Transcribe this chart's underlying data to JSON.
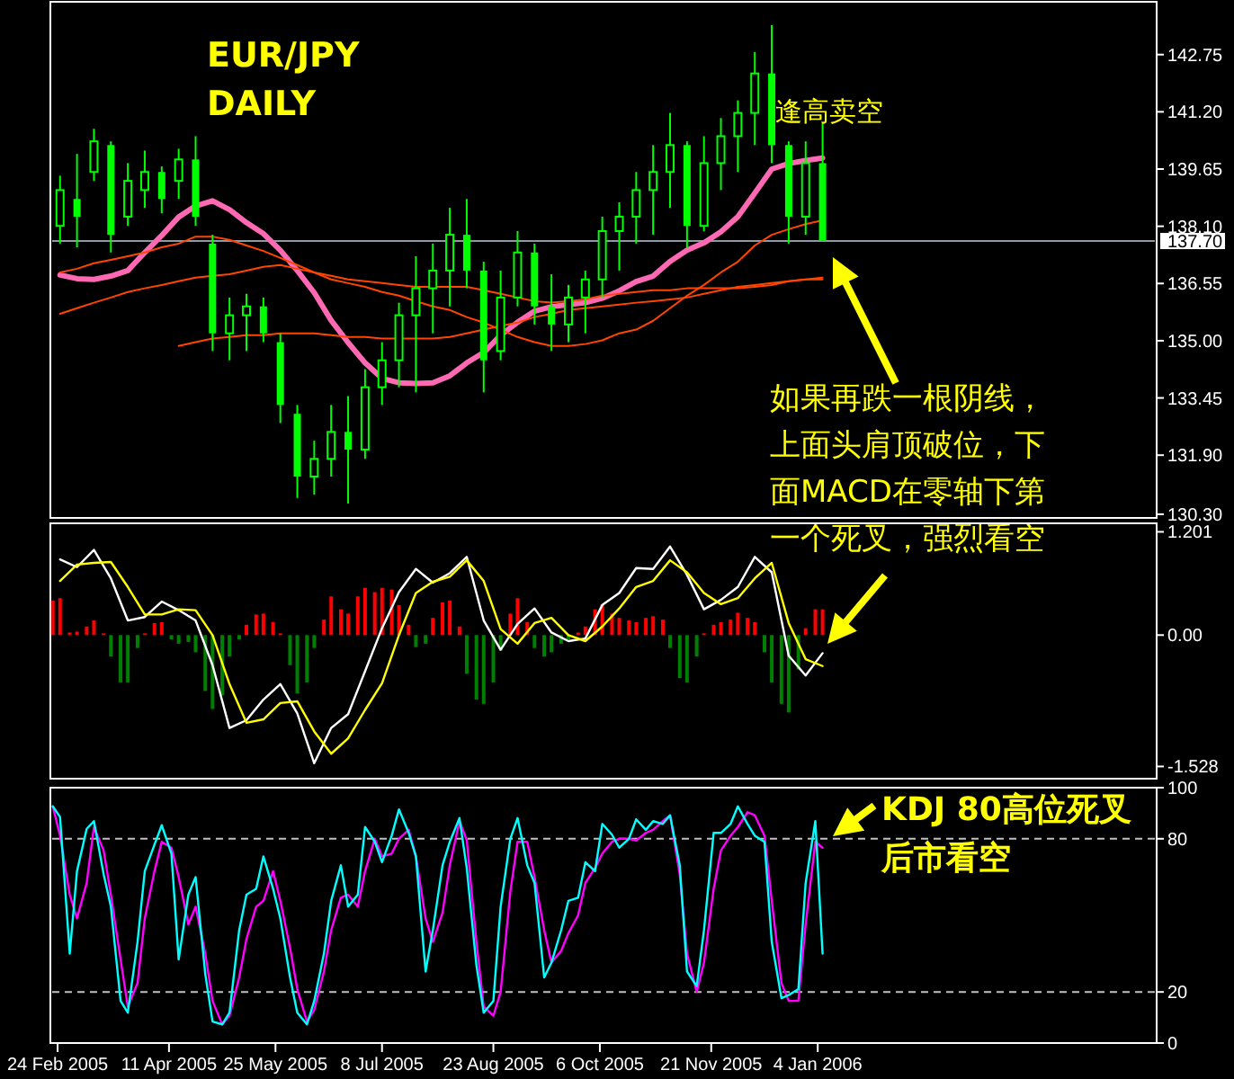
{
  "chart_data": [
    {
      "type": "candlestick",
      "title": "EUR/JPY",
      "subtitle": "DAILY",
      "color": "#00ff00",
      "x": [
        "2005-02-25",
        "2005-03-04",
        "2005-03-11",
        "2005-03-18",
        "2005-03-25",
        "2005-04-01",
        "2005-04-08",
        "2005-04-15",
        "2005-04-22",
        "2005-04-29",
        "2005-05-06",
        "2005-05-13",
        "2005-05-20",
        "2005-05-27",
        "2005-06-03",
        "2005-06-10",
        "2005-06-17",
        "2005-06-24",
        "2005-07-01",
        "2005-07-08",
        "2005-07-15",
        "2005-07-22",
        "2005-07-29",
        "2005-08-05",
        "2005-08-12",
        "2005-08-19",
        "2005-08-26",
        "2005-09-02",
        "2005-09-09",
        "2005-09-16",
        "2005-09-23",
        "2005-09-30",
        "2005-10-07",
        "2005-10-14",
        "2005-10-21",
        "2005-10-28",
        "2005-11-04",
        "2005-11-11",
        "2005-11-18",
        "2005-11-25",
        "2005-12-02",
        "2005-12-09",
        "2005-12-16",
        "2005-12-23",
        "2005-12-30",
        "2006-01-06"
      ],
      "ohlc": [
        [
          138.11,
          139.47,
          137.63,
          139.08
        ],
        [
          138.84,
          140.06,
          137.53,
          138.36
        ],
        [
          139.57,
          140.74,
          139.33,
          140.4
        ],
        [
          140.3,
          140.4,
          137.39,
          137.87
        ],
        [
          138.36,
          139.81,
          138.11,
          139.33
        ],
        [
          139.08,
          140.15,
          138.6,
          139.57
        ],
        [
          139.57,
          139.72,
          138.45,
          138.84
        ],
        [
          139.33,
          140.2,
          138.84,
          139.91
        ],
        [
          139.91,
          140.54,
          138.11,
          138.36
        ],
        [
          137.63,
          137.87,
          134.72,
          135.2
        ],
        [
          135.2,
          136.17,
          134.47,
          135.69
        ],
        [
          135.69,
          136.27,
          134.72,
          135.93
        ],
        [
          135.93,
          136.17,
          134.96,
          135.2
        ],
        [
          134.96,
          135.2,
          132.77,
          133.26
        ],
        [
          133.02,
          133.26,
          130.74,
          131.32
        ],
        [
          131.32,
          132.29,
          130.83,
          131.8
        ],
        [
          131.8,
          133.26,
          131.32,
          132.53
        ],
        [
          132.53,
          133.5,
          130.59,
          132.05
        ],
        [
          132.05,
          134.23,
          131.8,
          133.74
        ],
        [
          133.74,
          134.96,
          133.26,
          134.47
        ],
        [
          134.47,
          136.03,
          133.74,
          135.69
        ],
        [
          135.69,
          137.29,
          133.6,
          136.42
        ],
        [
          136.42,
          137.63,
          135.2,
          136.9
        ],
        [
          136.9,
          138.6,
          135.93,
          137.87
        ],
        [
          137.87,
          138.84,
          136.42,
          136.9
        ],
        [
          136.9,
          137.14,
          133.6,
          134.47
        ],
        [
          134.72,
          136.9,
          134.47,
          136.17
        ],
        [
          136.17,
          137.97,
          135.93,
          137.39
        ],
        [
          137.39,
          137.63,
          135.44,
          135.93
        ],
        [
          135.93,
          136.8,
          134.72,
          135.44
        ],
        [
          135.44,
          136.51,
          134.96,
          136.17
        ],
        [
          136.17,
          136.9,
          135.2,
          136.66
        ],
        [
          136.66,
          138.36,
          136.17,
          137.97
        ],
        [
          137.97,
          138.75,
          136.9,
          138.36
        ],
        [
          138.36,
          139.57,
          137.63,
          139.08
        ],
        [
          139.08,
          140.3,
          137.87,
          139.57
        ],
        [
          139.57,
          141.17,
          138.6,
          140.3
        ],
        [
          140.3,
          140.4,
          137.53,
          138.11
        ],
        [
          138.11,
          140.54,
          137.97,
          139.81
        ],
        [
          139.81,
          141.03,
          139.08,
          140.54
        ],
        [
          140.54,
          141.51,
          139.57,
          141.17
        ],
        [
          141.17,
          142.82,
          140.3,
          142.24
        ],
        [
          142.24,
          143.55,
          139.81,
          140.3
        ],
        [
          140.3,
          140.4,
          137.63,
          138.36
        ],
        [
          138.36,
          140.4,
          137.87,
          139.81
        ],
        [
          139.81,
          140.88,
          137.7,
          137.7
        ]
      ],
      "series": [
        {
          "type": "line",
          "color": "#ff69b4",
          "values": [
            136.78,
            136.68,
            136.66,
            136.75,
            136.9,
            137.39,
            137.85,
            138.35,
            138.65,
            138.79,
            138.55,
            138.2,
            137.9,
            137.45,
            136.9,
            136.3,
            135.55,
            134.95,
            134.4,
            133.98,
            133.86,
            133.84,
            133.86,
            134.05,
            134.4,
            134.68,
            135.15,
            135.5,
            135.8,
            135.92,
            135.98,
            136.03,
            136.15,
            136.35,
            136.6,
            136.75,
            137.15,
            137.45,
            137.65,
            137.95,
            138.36,
            139.0,
            139.65,
            139.8,
            139.88,
            139.95
          ]
        },
        {
          "type": "line",
          "color": "#ff4500",
          "values": [
            136.85,
            136.95,
            137.1,
            137.19,
            137.29,
            137.39,
            137.53,
            137.63,
            137.82,
            137.82,
            137.73,
            137.58,
            137.43,
            137.24,
            137.05,
            136.85,
            136.66,
            136.56,
            136.46,
            136.32,
            136.22,
            136.07,
            135.93,
            135.83,
            135.64,
            135.49,
            135.3,
            135.1,
            134.96,
            134.86,
            134.86,
            134.91,
            135.01,
            135.2,
            135.3,
            135.54,
            135.88,
            136.22,
            136.51,
            136.85,
            137.14,
            137.58,
            137.87,
            138.02,
            138.16,
            138.26
          ]
        },
        {
          "type": "line",
          "color": "#ff4500",
          "values": [
            135.73,
            135.88,
            136.03,
            136.17,
            136.32,
            136.42,
            136.51,
            136.61,
            136.71,
            136.76,
            136.8,
            136.9,
            137.0,
            137.05,
            136.95,
            136.85,
            136.76,
            136.66,
            136.61,
            136.56,
            136.51,
            136.46,
            136.46,
            136.46,
            136.46,
            136.37,
            136.27,
            136.17,
            136.07,
            136.03,
            136.07,
            136.12,
            136.22,
            136.27,
            136.32,
            136.37,
            136.37,
            136.42,
            136.42,
            136.42,
            136.42,
            136.46,
            136.51,
            136.61,
            136.66,
            136.71
          ]
        },
        {
          "type": "line",
          "color": "#ff4500",
          "values": [
            null,
            null,
            null,
            null,
            null,
            null,
            null,
            134.86,
            134.96,
            135.06,
            135.1,
            135.15,
            135.15,
            135.2,
            135.2,
            135.2,
            135.15,
            135.1,
            135.1,
            135.06,
            135.06,
            135.06,
            135.06,
            135.1,
            135.2,
            135.3,
            135.4,
            135.49,
            135.64,
            135.73,
            135.83,
            135.88,
            135.93,
            135.98,
            136.03,
            136.07,
            136.12,
            136.17,
            136.27,
            136.37,
            136.46,
            136.51,
            136.56,
            136.61,
            136.66,
            136.66
          ]
        }
      ],
      "xlim": [
        "2005-02-21",
        "2006-05-24"
      ],
      "ylim": [
        130.2,
        144.18
      ],
      "yticks": [
        {
          "value": 130.3,
          "label": "130.30"
        },
        {
          "value": 131.9,
          "label": "131.90"
        },
        {
          "value": 133.45,
          "label": "133.45"
        },
        {
          "value": 135,
          "label": "135.00"
        },
        {
          "value": 136.55,
          "label": "136.55"
        },
        {
          "value": 138.1,
          "label": "138.10"
        },
        {
          "value": 139.65,
          "label": "139.65"
        },
        {
          "value": 141.2,
          "label": "141.20"
        },
        {
          "value": 142.75,
          "label": "142.75"
        }
      ],
      "tick_labels": "y",
      "ref_lines": [
        {
          "axis": "y",
          "value": 137.7,
          "label": "137.70",
          "color": "#8c9aa8"
        }
      ],
      "annotations": [
        {
          "text": "逢高卖空",
          "x": "2005-12-16",
          "y": 143.55
        },
        "如果再跌一根阴线，上面头肩顶破位，下面MACD在零轴下第一个死叉，强烈看空"
      ]
    },
    {
      "type": "bar",
      "x": [
        "2005-02-22",
        "2005-02-25",
        "2005-03-01",
        "2005-03-04",
        "2005-03-08",
        "2005-03-11",
        "2005-03-15",
        "2005-03-18",
        "2005-03-22",
        "2005-03-25",
        "2005-03-29",
        "2005-04-01",
        "2005-04-05",
        "2005-04-08",
        "2005-04-12",
        "2005-04-15",
        "2005-04-19",
        "2005-04-22",
        "2005-04-26",
        "2005-04-29",
        "2005-05-03",
        "2005-05-06",
        "2005-05-10",
        "2005-05-13",
        "2005-05-17",
        "2005-05-20",
        "2005-05-24",
        "2005-05-27",
        "2005-05-31",
        "2005-06-03",
        "2005-06-07",
        "2005-06-10",
        "2005-06-14",
        "2005-06-17",
        "2005-06-21",
        "2005-06-24",
        "2005-06-28",
        "2005-07-01",
        "2005-07-05",
        "2005-07-08",
        "2005-07-12",
        "2005-07-15",
        "2005-07-19",
        "2005-07-22",
        "2005-07-26",
        "2005-07-29",
        "2005-08-02",
        "2005-08-05",
        "2005-08-09",
        "2005-08-12",
        "2005-08-16",
        "2005-08-19",
        "2005-08-23",
        "2005-08-26",
        "2005-08-30",
        "2005-09-02",
        "2005-09-06",
        "2005-09-09",
        "2005-09-13",
        "2005-09-16",
        "2005-09-20",
        "2005-09-23",
        "2005-09-27",
        "2005-09-30",
        "2005-10-04",
        "2005-10-07",
        "2005-10-11",
        "2005-10-14",
        "2005-10-18",
        "2005-10-21",
        "2005-10-25",
        "2005-10-28",
        "2005-11-01",
        "2005-11-04",
        "2005-11-08",
        "2005-11-11",
        "2005-11-15",
        "2005-11-18",
        "2005-11-22",
        "2005-11-25",
        "2005-11-29",
        "2005-12-02",
        "2005-12-06",
        "2005-12-09",
        "2005-12-13",
        "2005-12-16",
        "2005-12-20",
        "2005-12-23",
        "2005-12-27",
        "2005-12-30",
        "2006-01-03",
        "2006-01-06"
      ],
      "series": [
        {
          "type": "bar",
          "color": "#ff0000",
          "values": [
            0.4,
            0.43,
            0.03,
            0.04,
            0.1,
            0.17,
            0.02,
            null,
            null,
            null,
            null,
            0.02,
            0.14,
            0.15,
            null,
            null,
            null,
            null,
            null,
            null,
            null,
            null,
            null,
            0.12,
            0.24,
            0.25,
            0.15,
            0.02,
            null,
            null,
            null,
            null,
            0.18,
            0.45,
            0.3,
            0.25,
            0.45,
            0.55,
            0.5,
            0.55,
            0.53,
            0.35,
            0.12,
            null,
            null,
            0.2,
            0.38,
            0.4,
            0.1,
            null,
            null,
            null,
            null,
            null,
            0.25,
            0.43,
            0.15,
            null,
            null,
            null,
            null,
            null,
            0.03,
            0.1,
            0.3,
            0.36,
            0.25,
            0.2,
            0.17,
            0.15,
            0.2,
            0.22,
            0.18,
            null,
            null,
            null,
            null,
            0.02,
            0.12,
            0.15,
            0.18,
            0.26,
            0.2,
            0.15,
            null,
            null,
            null,
            null,
            null,
            0.08,
            0.3,
            0.3
          ]
        },
        {
          "type": "bar",
          "color": "#008000",
          "values": [
            null,
            null,
            null,
            null,
            null,
            null,
            null,
            -0.25,
            -0.55,
            -0.55,
            -0.15,
            null,
            null,
            null,
            -0.05,
            -0.1,
            -0.08,
            -0.2,
            -0.65,
            -0.86,
            -0.7,
            -0.25,
            -0.05,
            null,
            null,
            null,
            null,
            null,
            -0.35,
            -0.68,
            -0.55,
            -0.15,
            null,
            null,
            null,
            null,
            null,
            null,
            null,
            null,
            null,
            null,
            null,
            -0.14,
            -0.1,
            null,
            null,
            null,
            null,
            -0.45,
            -0.75,
            -0.8,
            -0.55,
            -0.18,
            null,
            null,
            null,
            -0.15,
            -0.25,
            -0.2,
            -0.1,
            -0.05,
            null,
            null,
            null,
            null,
            null,
            null,
            null,
            null,
            null,
            null,
            null,
            -0.15,
            -0.5,
            -0.55,
            -0.25,
            null,
            null,
            null,
            null,
            null,
            null,
            null,
            -0.2,
            -0.55,
            -0.8,
            -0.9,
            -0.4,
            null,
            null,
            null
          ]
        },
        {
          "type": "line",
          "color": "#ffffff",
          "x": [
            "2005-02-25",
            "2005-03-04",
            "2005-03-11",
            "2005-03-18",
            "2005-03-25",
            "2005-04-01",
            "2005-04-08",
            "2005-04-15",
            "2005-04-22",
            "2005-04-29",
            "2005-05-06",
            "2005-05-13",
            "2005-05-20",
            "2005-05-27",
            "2005-06-03",
            "2005-06-10",
            "2005-06-17",
            "2005-06-24",
            "2005-07-01",
            "2005-07-08",
            "2005-07-15",
            "2005-07-22",
            "2005-07-29",
            "2005-08-05",
            "2005-08-12",
            "2005-08-19",
            "2005-08-26",
            "2005-09-02",
            "2005-09-09",
            "2005-09-16",
            "2005-09-23",
            "2005-09-30",
            "2005-10-07",
            "2005-10-14",
            "2005-10-21",
            "2005-10-28",
            "2005-11-04",
            "2005-11-11",
            "2005-11-18",
            "2005-11-25",
            "2005-12-02",
            "2005-12-09",
            "2005-12-16",
            "2005-12-23",
            "2005-12-30",
            "2006-01-06"
          ],
          "values": [
            0.88,
            0.79,
            0.99,
            0.66,
            0.17,
            0.21,
            0.39,
            0.29,
            0.17,
            -0.35,
            -1.08,
            -0.99,
            -0.75,
            -0.57,
            -0.91,
            -1.49,
            -1.08,
            -0.92,
            -0.42,
            0.08,
            0.5,
            0.77,
            0.61,
            0.72,
            0.91,
            0.17,
            -0.17,
            0.13,
            0.31,
            0.03,
            -0.07,
            -0.04,
            0.35,
            0.49,
            0.78,
            0.77,
            1.03,
            0.7,
            0.3,
            0.41,
            0.56,
            0.91,
            0.73,
            -0.24,
            -0.47,
            -0.21
          ]
        },
        {
          "type": "line",
          "color": "#ffff00",
          "x": [
            "2005-02-25",
            "2005-03-04",
            "2005-03-11",
            "2005-03-18",
            "2005-03-25",
            "2005-04-01",
            "2005-04-08",
            "2005-04-15",
            "2005-04-22",
            "2005-04-29",
            "2005-05-06",
            "2005-05-13",
            "2005-05-20",
            "2005-05-27",
            "2005-06-03",
            "2005-06-10",
            "2005-06-17",
            "2005-06-24",
            "2005-07-01",
            "2005-07-08",
            "2005-07-15",
            "2005-07-22",
            "2005-07-29",
            "2005-08-05",
            "2005-08-12",
            "2005-08-19",
            "2005-08-26",
            "2005-09-02",
            "2005-09-09",
            "2005-09-16",
            "2005-09-23",
            "2005-09-30",
            "2005-10-07",
            "2005-10-14",
            "2005-10-21",
            "2005-10-28",
            "2005-11-04",
            "2005-11-11",
            "2005-11-18",
            "2005-11-25",
            "2005-12-02",
            "2005-12-09",
            "2005-12-16",
            "2005-12-23",
            "2005-12-30",
            "2006-01-06"
          ],
          "values": [
            0.63,
            0.82,
            0.84,
            0.85,
            0.56,
            0.24,
            0.24,
            0.3,
            0.29,
            0.0,
            -0.57,
            -1.02,
            -0.98,
            -0.79,
            -0.77,
            -1.12,
            -1.38,
            -1.2,
            -0.87,
            -0.56,
            0.0,
            0.49,
            0.62,
            0.68,
            0.87,
            0.63,
            0.07,
            -0.1,
            0.14,
            0.2,
            0.0,
            -0.07,
            0.1,
            0.31,
            0.56,
            0.63,
            0.87,
            0.73,
            0.49,
            0.36,
            0.43,
            0.66,
            0.84,
            0.14,
            -0.28,
            -0.36
          ]
        }
      ],
      "xlim": [
        "2005-02-21",
        "2006-05-24"
      ],
      "ylim": [
        -1.67,
        1.3
      ],
      "yticks": [
        {
          "value": 1.201,
          "label": "1.201"
        },
        {
          "value": 0,
          "label": "0.00"
        },
        {
          "value": -1.528,
          "label": "-1.528"
        }
      ],
      "tick_labels": "y"
    },
    {
      "type": "line",
      "x": [
        "2005-02-22",
        "2005-02-25",
        "2005-03-01",
        "2005-03-04",
        "2005-03-08",
        "2005-03-11",
        "2005-03-15",
        "2005-03-18",
        "2005-03-22",
        "2005-03-25",
        "2005-03-29",
        "2005-04-01",
        "2005-04-05",
        "2005-04-08",
        "2005-04-12",
        "2005-04-15",
        "2005-04-19",
        "2005-04-22",
        "2005-04-26",
        "2005-04-29",
        "2005-05-03",
        "2005-05-06",
        "2005-05-10",
        "2005-05-13",
        "2005-05-17",
        "2005-05-20",
        "2005-05-24",
        "2005-05-27",
        "2005-05-31",
        "2005-06-03",
        "2005-06-07",
        "2005-06-10",
        "2005-06-14",
        "2005-06-17",
        "2005-06-21",
        "2005-06-24",
        "2005-06-28",
        "2005-07-01",
        "2005-07-05",
        "2005-07-08",
        "2005-07-12",
        "2005-07-15",
        "2005-07-19",
        "2005-07-22",
        "2005-07-26",
        "2005-07-29",
        "2005-08-02",
        "2005-08-05",
        "2005-08-09",
        "2005-08-12",
        "2005-08-16",
        "2005-08-19",
        "2005-08-23",
        "2005-08-26",
        "2005-08-30",
        "2005-09-02",
        "2005-09-06",
        "2005-09-09",
        "2005-09-13",
        "2005-09-16",
        "2005-09-20",
        "2005-09-23",
        "2005-09-27",
        "2005-09-30",
        "2005-10-04",
        "2005-10-07",
        "2005-10-11",
        "2005-10-14",
        "2005-10-18",
        "2005-10-21",
        "2005-10-25",
        "2005-10-28",
        "2005-11-01",
        "2005-11-04",
        "2005-11-08",
        "2005-11-11",
        "2005-11-15",
        "2005-11-18",
        "2005-11-22",
        "2005-11-25",
        "2005-11-29",
        "2005-12-02",
        "2005-12-06",
        "2005-12-09",
        "2005-12-13",
        "2005-12-16",
        "2005-12-20",
        "2005-12-23",
        "2005-12-27",
        "2005-12-30",
        "2006-01-03",
        "2006-01-06"
      ],
      "series": [
        {
          "color": "#ff00ff",
          "values": [
            92.7,
            81.2,
            58.1,
            48.8,
            62.7,
            84.6,
            75.4,
            58.1,
            32.7,
            14.2,
            23.5,
            48.8,
            67.3,
            78.8,
            76.5,
            65.0,
            46.5,
            53.4,
            35.0,
            16.5,
            7.3,
            10.7,
            25.7,
            40.7,
            53.4,
            55.7,
            67.3,
            55.7,
            37.3,
            21.1,
            8.4,
            13.0,
            28.0,
            44.2,
            56.9,
            58.1,
            53.4,
            67.3,
            80.0,
            73.1,
            74.2,
            80.0,
            83.5,
            73.1,
            48.8,
            39.6,
            51.1,
            69.6,
            86.9,
            79.5,
            39.6,
            14.2,
            10.7,
            20.0,
            59.2,
            78.8,
            78.8,
            65.0,
            44.2,
            31.5,
            36.1,
            43.0,
            50.0,
            62.7,
            68.5,
            74.2,
            78.8,
            80.0,
            80.0,
            79.3,
            82.3,
            83.5,
            86.9,
            89.2,
            66.1,
            35.0,
            20.0,
            31.5,
            60.4,
            75.4,
            81.2,
            84.6,
            90.4,
            89.2,
            81.2,
            55.7,
            23.5,
            16.5,
            16.5,
            46.5,
            78.8,
            76.5
          ]
        },
        {
          "color": "#00ffff",
          "values": [
            92.7,
            88.5,
            35.0,
            67.3,
            83.9,
            86.9,
            66.1,
            53.4,
            16.5,
            11.9,
            39.6,
            67.3,
            77.7,
            85.3,
            74.2,
            32.7,
            58.1,
            65.0,
            26.9,
            8.4,
            7.3,
            11.9,
            44.2,
            58.1,
            60.4,
            73.1,
            60.4,
            48.8,
            25.7,
            11.9,
            7.3,
            16.5,
            35.0,
            55.7,
            69.6,
            53.4,
            58.1,
            84.6,
            78.8,
            70.8,
            81.2,
            91.5,
            82.3,
            73.1,
            28.0,
            44.2,
            69.6,
            78.8,
            88.1,
            68.5,
            30.4,
            11.9,
            16.5,
            53.4,
            80.0,
            88.1,
            69.6,
            62.7,
            25.7,
            31.5,
            44.2,
            55.7,
            56.9,
            70.8,
            67.3,
            85.8,
            81.6,
            76.5,
            80.0,
            87.6,
            83.5,
            86.9,
            85.8,
            89.2,
            69.6,
            28.0,
            22.3,
            44.2,
            82.3,
            82.3,
            85.8,
            92.7,
            85.8,
            81.2,
            78.8,
            39.6,
            17.6,
            18.8,
            21.1,
            62.7,
            86.9,
            35.0
          ]
        }
      ],
      "xlim": [
        "2005-02-21",
        "2006-05-24"
      ],
      "ylim": [
        0,
        100
      ],
      "xticks": [
        {
          "value": "2005-02-24",
          "label": "24 Feb 2005"
        },
        {
          "value": "2005-04-11",
          "label": "11 Apr 2005"
        },
        {
          "value": "2005-05-25",
          "label": "25 May 2005"
        },
        {
          "value": "2005-07-08",
          "label": "8 Jul 2005"
        },
        {
          "value": "2005-08-23",
          "label": "23 Aug 2005"
        },
        {
          "value": "2005-10-06",
          "label": "6 Oct 2005"
        },
        {
          "value": "2005-11-21",
          "label": "21 Nov 2005"
        },
        {
          "value": "2006-01-04",
          "label": "4 Jan 2006"
        }
      ],
      "yticks": [
        0,
        20,
        80,
        100
      ],
      "ref_lines": [
        {
          "axis": "y",
          "value": 80,
          "label": null,
          "color": "#c0c0c0",
          "line_style": "dashed"
        },
        {
          "axis": "y",
          "value": 20,
          "label": null,
          "color": "#c0c0c0",
          "line_style": "dashed"
        }
      ],
      "annotations": [
        "KDJ 80高位死叉后市看空"
      ]
    }
  ]
}
